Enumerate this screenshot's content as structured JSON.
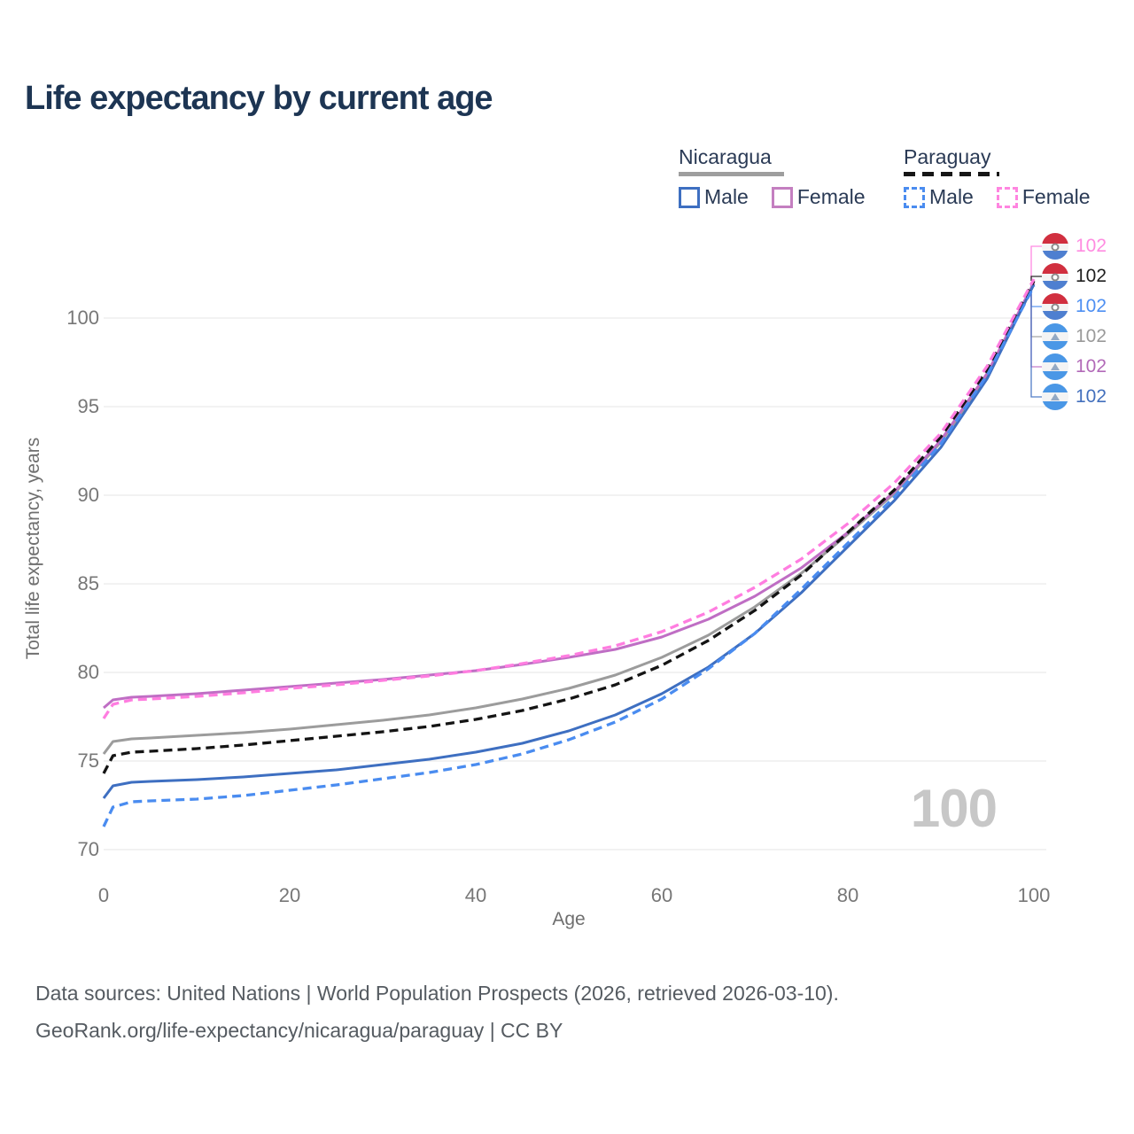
{
  "title": "Life expectancy by current age",
  "legend": {
    "groups": [
      {
        "label": "Nicaragua",
        "line_style": "solid",
        "underline_color": "#9e9e9e",
        "items": [
          {
            "label": "Male",
            "color": "#3e6fc1"
          },
          {
            "label": "Female",
            "color": "#c47fc0"
          }
        ]
      },
      {
        "label": "Paraguay",
        "line_style": "dashed",
        "underline_color": "#161616",
        "items": [
          {
            "label": "Male",
            "color": "#4a8cf0"
          },
          {
            "label": "Female",
            "color": "#ff85e0"
          }
        ]
      }
    ]
  },
  "axes": {
    "y": {
      "label": "Total life expectancy, years",
      "ticks": [
        70,
        75,
        80,
        85,
        90,
        95,
        100
      ],
      "range": [
        70,
        103
      ]
    },
    "x": {
      "label": "Age",
      "ticks": [
        0,
        20,
        40,
        60,
        80,
        100
      ],
      "range": [
        0,
        100
      ]
    }
  },
  "watermark": "100",
  "chart_data": {
    "type": "line",
    "title": "Life expectancy by current age",
    "xlabel": "Age",
    "ylabel": "Total life expectancy, years",
    "grid": "horizontal",
    "x": [
      0,
      1,
      3,
      5,
      10,
      15,
      20,
      25,
      30,
      35,
      40,
      45,
      50,
      55,
      60,
      65,
      70,
      75,
      80,
      85,
      90,
      95,
      100
    ],
    "series": [
      {
        "name": "Paraguay Female",
        "country": "Paraguay",
        "sex": "Female",
        "line_color": "#ff7de0",
        "dash": true,
        "end_label": "102",
        "end_label_color": "#ff8ce1",
        "flag": "paraguay",
        "values": [
          77.4,
          78.2,
          78.45,
          78.5,
          78.65,
          78.85,
          79.1,
          79.3,
          79.55,
          79.8,
          80.1,
          80.5,
          80.95,
          81.5,
          82.3,
          83.4,
          84.8,
          86.4,
          88.4,
          90.7,
          93.5,
          97.3,
          102.2
        ]
      },
      {
        "name": "Paraguay Both sexes",
        "country": "Paraguay",
        "sex": "Both",
        "line_color": "#141414",
        "dash": true,
        "end_label": "102",
        "end_label_color": "#1f1f1f",
        "flag": "paraguay",
        "values": [
          74.3,
          75.3,
          75.5,
          75.55,
          75.7,
          75.9,
          76.15,
          76.4,
          76.65,
          76.95,
          77.35,
          77.85,
          78.5,
          79.3,
          80.4,
          81.8,
          83.5,
          85.5,
          87.9,
          90.3,
          93.3,
          97.1,
          102.1
        ]
      },
      {
        "name": "Paraguay Male",
        "country": "Paraguay",
        "sex": "Male",
        "line_color": "#4a8cf0",
        "dash": true,
        "end_label": "102",
        "end_label_color": "#4e8ff2",
        "flag": "paraguay",
        "values": [
          71.3,
          72.4,
          72.7,
          72.75,
          72.85,
          73.05,
          73.35,
          73.65,
          74.0,
          74.35,
          74.8,
          75.4,
          76.2,
          77.2,
          78.5,
          80.2,
          82.2,
          84.7,
          87.3,
          89.9,
          92.9,
          96.8,
          101.8
        ]
      },
      {
        "name": "Nicaragua Both sexes",
        "country": "Nicaragua",
        "sex": "Both",
        "line_color": "#9c9c9c",
        "dash": false,
        "end_label": "102",
        "end_label_color": "#9a9a9a",
        "flag": "nicaragua",
        "values": [
          75.4,
          76.1,
          76.25,
          76.3,
          76.45,
          76.6,
          76.8,
          77.05,
          77.3,
          77.6,
          78.0,
          78.5,
          79.1,
          79.85,
          80.85,
          82.1,
          83.7,
          85.6,
          87.8,
          90.1,
          93.0,
          96.8,
          101.9
        ]
      },
      {
        "name": "Nicaragua Female",
        "country": "Nicaragua",
        "sex": "Female",
        "line_color": "#bf6ec4",
        "dash": false,
        "end_label": "102",
        "end_label_color": "#b26ab8",
        "flag": "nicaragua",
        "values": [
          78.0,
          78.45,
          78.6,
          78.65,
          78.8,
          79.0,
          79.2,
          79.4,
          79.6,
          79.85,
          80.1,
          80.45,
          80.85,
          81.3,
          82.0,
          83.0,
          84.3,
          85.9,
          87.9,
          90.2,
          93.1,
          96.9,
          102.0
        ]
      },
      {
        "name": "Nicaragua Male",
        "country": "Nicaragua",
        "sex": "Male",
        "line_color": "#3e6fc1",
        "dash": false,
        "end_label": "102",
        "end_label_color": "#4370bd",
        "flag": "nicaragua",
        "values": [
          72.9,
          73.6,
          73.8,
          73.85,
          73.95,
          74.1,
          74.3,
          74.5,
          74.8,
          75.1,
          75.5,
          76.0,
          76.7,
          77.6,
          78.8,
          80.3,
          82.2,
          84.5,
          87.1,
          89.7,
          92.7,
          96.6,
          101.9
        ]
      }
    ]
  },
  "footer": {
    "line1": "Data sources: United Nations | World Population Prospects (2026, retrieved 2026-03-10).",
    "line2": "GeoRank.org/life-expectancy/nicaragua/paraguay | CC BY"
  }
}
